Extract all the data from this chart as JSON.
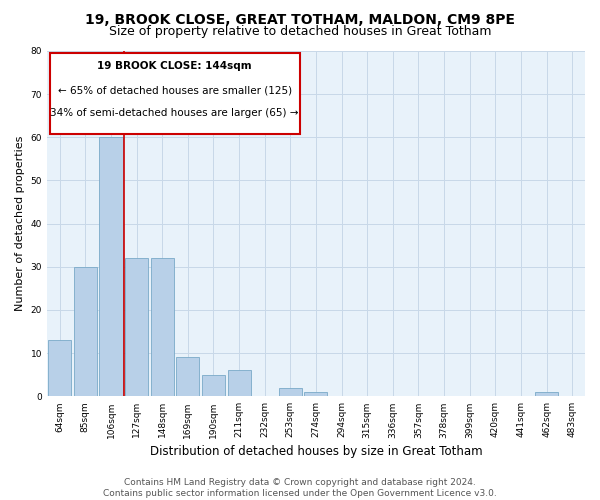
{
  "title1": "19, BROOK CLOSE, GREAT TOTHAM, MALDON, CM9 8PE",
  "title2": "Size of property relative to detached houses in Great Totham",
  "xlabel": "Distribution of detached houses by size in Great Totham",
  "ylabel": "Number of detached properties",
  "footer1": "Contains HM Land Registry data © Crown copyright and database right 2024.",
  "footer2": "Contains public sector information licensed under the Open Government Licence v3.0.",
  "annotation_line1": "19 BROOK CLOSE: 144sqm",
  "annotation_line2": "← 65% of detached houses are smaller (125)",
  "annotation_line3": "34% of semi-detached houses are larger (65) →",
  "categories": [
    "64sqm",
    "85sqm",
    "106sqm",
    "127sqm",
    "148sqm",
    "169sqm",
    "190sqm",
    "211sqm",
    "232sqm",
    "253sqm",
    "274sqm",
    "294sqm",
    "315sqm",
    "336sqm",
    "357sqm",
    "378sqm",
    "399sqm",
    "420sqm",
    "441sqm",
    "462sqm",
    "483sqm"
  ],
  "values": [
    13,
    30,
    60,
    32,
    32,
    9,
    5,
    6,
    0,
    2,
    1,
    0,
    0,
    0,
    0,
    0,
    0,
    0,
    0,
    1,
    0
  ],
  "bar_color": "#b8d0e8",
  "bar_edge_color": "#7aaac8",
  "bar_width": 0.9,
  "vline_x": 2.5,
  "vline_color": "#cc0000",
  "ylim": [
    0,
    80
  ],
  "yticks": [
    0,
    10,
    20,
    30,
    40,
    50,
    60,
    70,
    80
  ],
  "grid_color": "#c8d8e8",
  "background_color": "#e8f2fa",
  "annotation_box_facecolor": "#ffffff",
  "annotation_box_edgecolor": "#cc0000",
  "title_fontsize": 10,
  "subtitle_fontsize": 9,
  "annotation_fontsize": 7.5,
  "tick_fontsize": 6.5,
  "ylabel_fontsize": 8,
  "xlabel_fontsize": 8.5,
  "footer_fontsize": 6.5
}
